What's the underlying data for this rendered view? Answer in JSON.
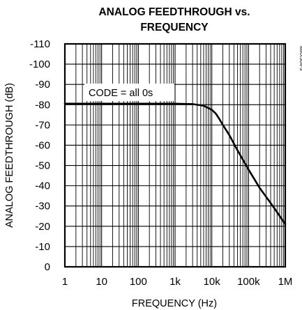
{
  "chart_data": {
    "type": "line",
    "title": "ANALOG FEEDTHROUGH vs.",
    "subtitle": "FREQUENCY",
    "xlabel": "FREQUENCY (Hz)",
    "ylabel": "ANALOG FEEDTHROUGH (dB)",
    "x_scale": "log",
    "xlim": [
      1,
      1000000
    ],
    "ylim": [
      0,
      -110
    ],
    "x_tick_values": [
      1,
      10,
      100,
      1000,
      10000,
      100000,
      1000000
    ],
    "x_tick_labels": [
      "1",
      "10",
      "100",
      "1k",
      "10k",
      "100k",
      "1M"
    ],
    "y_tick_values": [
      -110,
      -100,
      -90,
      -80,
      -70,
      -60,
      -50,
      -40,
      -30,
      -20,
      -10,
      0
    ],
    "y_tick_labels": [
      "-110",
      "-100",
      "-90",
      "-80",
      "-70",
      "-60",
      "-50",
      "-40",
      "-30",
      "-20",
      "-10",
      "0"
    ],
    "grid": true,
    "annotation": "CODE = all 0s",
    "figure_code": "MAX504-3",
    "line_color": "#000000",
    "series": [
      {
        "x": [
          1,
          10,
          100,
          1000,
          3000,
          6000,
          10000,
          13000,
          16000,
          20000,
          30000,
          50000,
          100000,
          200000,
          500000,
          1000000
        ],
        "values": [
          -80.5,
          -80.5,
          -80.5,
          -80.5,
          -80.3,
          -79.5,
          -77.5,
          -75.5,
          -73.0,
          -70.0,
          -65.0,
          -57.5,
          -48.0,
          -39.0,
          -29.0,
          -21.0
        ]
      }
    ]
  }
}
